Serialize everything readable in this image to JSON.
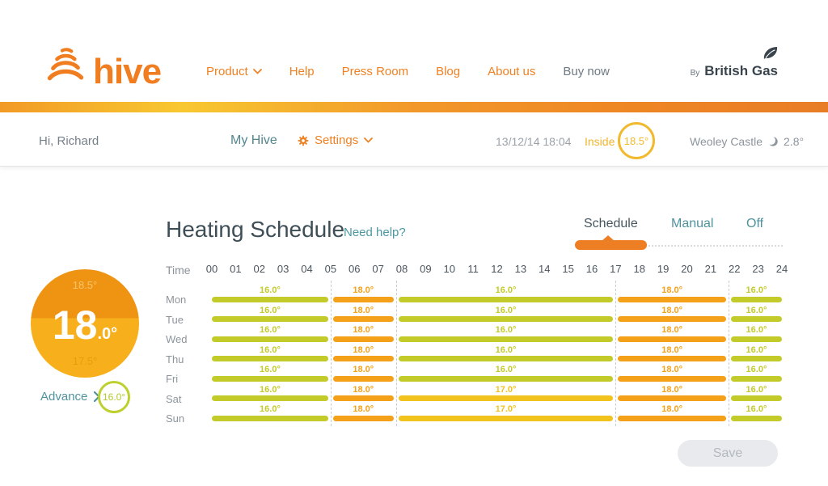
{
  "header": {
    "logo_text": "hive",
    "nav": [
      {
        "label": "Product",
        "dropdown": true
      },
      {
        "label": "Help"
      },
      {
        "label": "Press Room"
      },
      {
        "label": "Blog"
      },
      {
        "label": "About us"
      },
      {
        "label": "Buy now"
      }
    ],
    "byline": {
      "by": "By",
      "brand": "British Gas"
    }
  },
  "subheader": {
    "greeting": "Hi, Richard",
    "my_hive": "My Hive",
    "settings": "Settings",
    "datetime": "13/12/14 18:04",
    "inside_label": "Inside",
    "inside_temp": "18.5°",
    "location": "Weoley Castle",
    "outside_temp": "2.8°"
  },
  "page": {
    "title": "Heating Schedule",
    "help": "Need help?",
    "tabs": [
      {
        "label": "Schedule",
        "active": true
      },
      {
        "label": "Manual",
        "active": false
      },
      {
        "label": "Off",
        "active": false
      }
    ]
  },
  "thermostat": {
    "high": "18.5°",
    "main": "18",
    "decimal": ".0°",
    "low": "17.5°",
    "advance_label": "Advance",
    "advance_temp": "16.0°"
  },
  "schedule": {
    "time_label": "Time",
    "hours": [
      "00",
      "01",
      "02",
      "03",
      "04",
      "05",
      "06",
      "07",
      "08",
      "09",
      "10",
      "11",
      "12",
      "13",
      "14",
      "15",
      "16",
      "17",
      "18",
      "19",
      "20",
      "21",
      "22",
      "23",
      "24"
    ],
    "dividers": [
      5,
      7.75,
      17,
      21.75
    ],
    "colors": {
      "green": "#c3cb2b",
      "gold": "#f3c31d",
      "orange": "#f5a019"
    },
    "days": [
      {
        "label": "Mon",
        "segments": [
          {
            "start": 0,
            "end": 5,
            "temp": "16.0°",
            "color": "green"
          },
          {
            "start": 5,
            "end": 7.75,
            "temp": "18.0°",
            "color": "orange"
          },
          {
            "start": 7.75,
            "end": 17,
            "temp": "16.0°",
            "color": "green"
          },
          {
            "start": 17,
            "end": 21.75,
            "temp": "18.0°",
            "color": "orange"
          },
          {
            "start": 21.75,
            "end": 24,
            "temp": "16.0°",
            "color": "green"
          }
        ]
      },
      {
        "label": "Tue",
        "segments": [
          {
            "start": 0,
            "end": 5,
            "temp": "16.0°",
            "color": "green"
          },
          {
            "start": 5,
            "end": 7.75,
            "temp": "18.0°",
            "color": "orange"
          },
          {
            "start": 7.75,
            "end": 17,
            "temp": "16.0°",
            "color": "green"
          },
          {
            "start": 17,
            "end": 21.75,
            "temp": "18.0°",
            "color": "orange"
          },
          {
            "start": 21.75,
            "end": 24,
            "temp": "16.0°",
            "color": "green"
          }
        ]
      },
      {
        "label": "Wed",
        "segments": [
          {
            "start": 0,
            "end": 5,
            "temp": "16.0°",
            "color": "green"
          },
          {
            "start": 5,
            "end": 7.75,
            "temp": "18.0°",
            "color": "orange"
          },
          {
            "start": 7.75,
            "end": 17,
            "temp": "16.0°",
            "color": "green"
          },
          {
            "start": 17,
            "end": 21.75,
            "temp": "18.0°",
            "color": "orange"
          },
          {
            "start": 21.75,
            "end": 24,
            "temp": "16.0°",
            "color": "green"
          }
        ]
      },
      {
        "label": "Thu",
        "segments": [
          {
            "start": 0,
            "end": 5,
            "temp": "16.0°",
            "color": "green"
          },
          {
            "start": 5,
            "end": 7.75,
            "temp": "18.0°",
            "color": "orange"
          },
          {
            "start": 7.75,
            "end": 17,
            "temp": "16.0°",
            "color": "green"
          },
          {
            "start": 17,
            "end": 21.75,
            "temp": "18.0°",
            "color": "orange"
          },
          {
            "start": 21.75,
            "end": 24,
            "temp": "16.0°",
            "color": "green"
          }
        ]
      },
      {
        "label": "Fri",
        "segments": [
          {
            "start": 0,
            "end": 5,
            "temp": "16.0°",
            "color": "green"
          },
          {
            "start": 5,
            "end": 7.75,
            "temp": "18.0°",
            "color": "orange"
          },
          {
            "start": 7.75,
            "end": 17,
            "temp": "16.0°",
            "color": "green"
          },
          {
            "start": 17,
            "end": 21.75,
            "temp": "18.0°",
            "color": "orange"
          },
          {
            "start": 21.75,
            "end": 24,
            "temp": "16.0°",
            "color": "green"
          }
        ]
      },
      {
        "label": "Sat",
        "segments": [
          {
            "start": 0,
            "end": 5,
            "temp": "16.0°",
            "color": "green"
          },
          {
            "start": 5,
            "end": 7.75,
            "temp": "18.0°",
            "color": "orange"
          },
          {
            "start": 7.75,
            "end": 17,
            "temp": "17.0°",
            "color": "gold"
          },
          {
            "start": 17,
            "end": 21.75,
            "temp": "18.0°",
            "color": "orange"
          },
          {
            "start": 21.75,
            "end": 24,
            "temp": "16.0°",
            "color": "green"
          }
        ]
      },
      {
        "label": "Sun",
        "segments": [
          {
            "start": 0,
            "end": 5,
            "temp": "16.0°",
            "color": "green"
          },
          {
            "start": 5,
            "end": 7.75,
            "temp": "18.0°",
            "color": "orange"
          },
          {
            "start": 7.75,
            "end": 17,
            "temp": "17.0°",
            "color": "gold"
          },
          {
            "start": 17,
            "end": 21.75,
            "temp": "18.0°",
            "color": "orange"
          },
          {
            "start": 21.75,
            "end": 24,
            "temp": "16.0°",
            "color": "green"
          }
        ]
      }
    ]
  },
  "footer": {
    "save_label": "Save"
  },
  "colors": {
    "accent_orange": "#ef8123",
    "brand_orange": "#f07d20",
    "nav_muted": "#6d7a84",
    "teal": "#4e939c",
    "heading": "#3e4e57",
    "gray_text": "#8d959c",
    "amber": "#f1b92e",
    "dial_top": "#ef9312",
    "dial_bottom": "#f7b01b"
  }
}
